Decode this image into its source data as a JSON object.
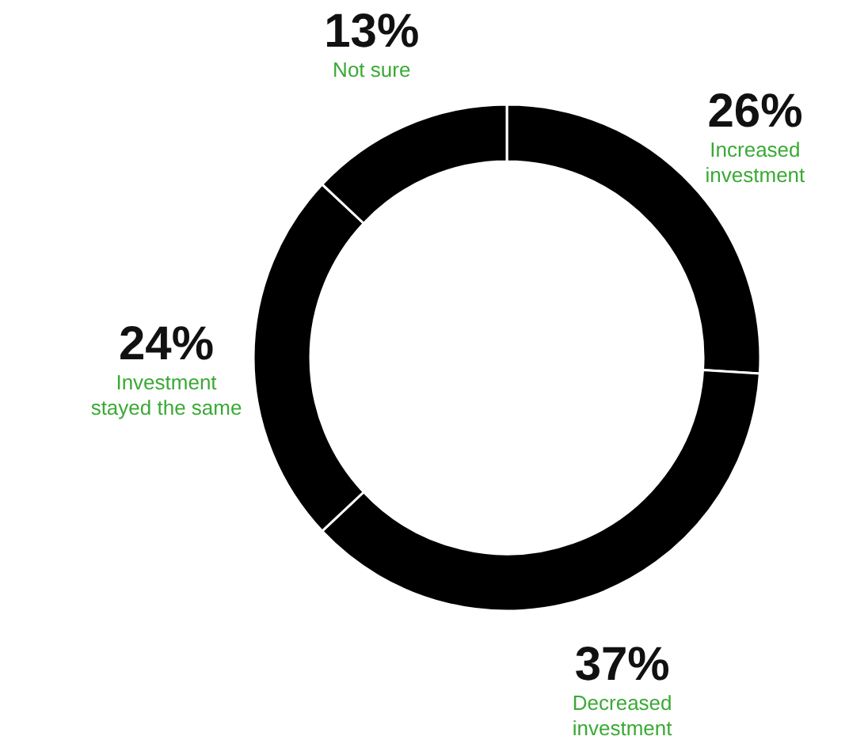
{
  "chart_data": {
    "type": "donut",
    "categories": [
      "Increased investment",
      "Decreased investment",
      "Investment stayed the same",
      "Not sure"
    ],
    "values": [
      26,
      37,
      24,
      13
    ],
    "value_labels": [
      "26%",
      "37%",
      "24%",
      "13%"
    ],
    "colors": [
      "#000000",
      "#000000",
      "#000000",
      "#000000"
    ]
  }
}
